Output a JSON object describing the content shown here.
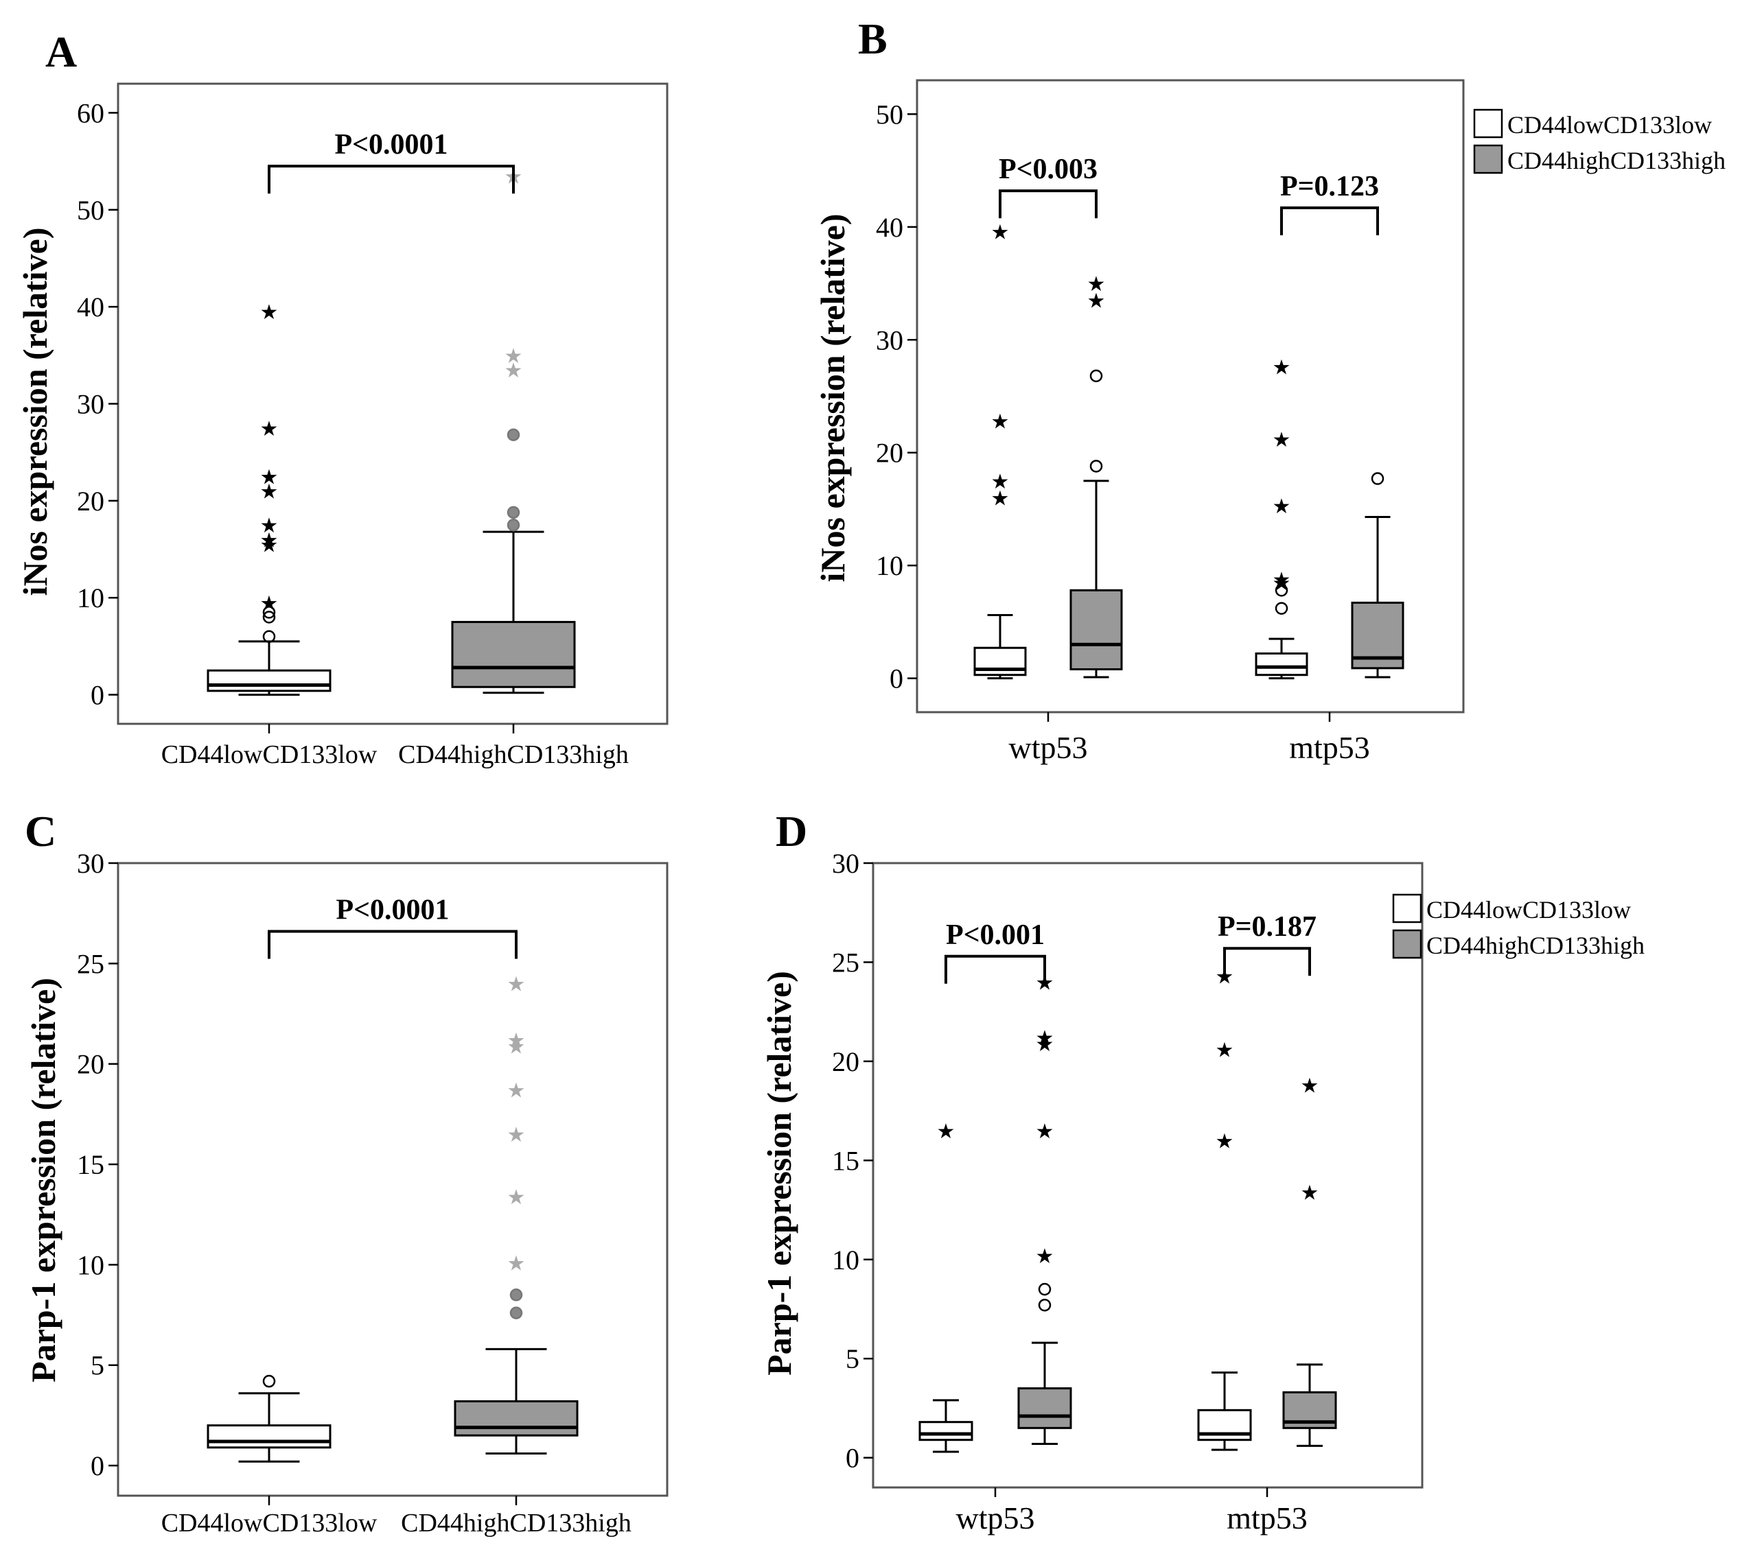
{
  "figure": {
    "panels": [
      "A",
      "B",
      "C",
      "D"
    ]
  },
  "colors": {
    "low_fill": "#ffffff",
    "high_fill": "#999999",
    "axis": "#000000",
    "frame": "#555555",
    "faded": "#aaaaaa"
  },
  "chart_data": [
    {
      "panel": "A",
      "type": "box",
      "ylabel": "iNos expression (relative)",
      "ylim": [
        -3,
        63
      ],
      "yticks": [
        0,
        10,
        20,
        30,
        40,
        50,
        60
      ],
      "categories": [
        "CD44lowCD133low",
        "CD44highCD133high"
      ],
      "boxes": [
        {
          "category": "CD44lowCD133low",
          "color": "#ffffff",
          "min": 0,
          "q1": 0.4,
          "median": 1.0,
          "q3": 2.5,
          "max": 5.5,
          "outliers_circle": [
            6.0,
            8.0,
            8.5
          ],
          "outliers_star": [
            9.5,
            15.5,
            16.0,
            17.5,
            21.0,
            22.5,
            27.5,
            39.5
          ],
          "faded": false
        },
        {
          "category": "CD44highCD133high",
          "color": "#999999",
          "min": 0.2,
          "q1": 0.8,
          "median": 2.8,
          "q3": 7.5,
          "max": 16.8,
          "outliers_circle": [
            17.5,
            18.8,
            26.8
          ],
          "outliers_star": [
            33.5,
            35.0,
            53.5
          ],
          "faded": true
        }
      ],
      "comparisons": [
        {
          "label": "P<0.0001",
          "between": [
            0,
            1
          ],
          "y": 54.5
        }
      ]
    },
    {
      "panel": "B",
      "type": "box",
      "ylabel": "iNos expression (relative)",
      "ylim": [
        -3,
        53
      ],
      "yticks": [
        0,
        10,
        20,
        30,
        40,
        50
      ],
      "groups": [
        "wtp53",
        "mtp53"
      ],
      "legend": [
        "CD44lowCD133low",
        "CD44highCD133high"
      ],
      "boxes": [
        {
          "group": "wtp53",
          "series": "CD44lowCD133low",
          "color": "#ffffff",
          "min": 0,
          "q1": 0.3,
          "median": 0.8,
          "q3": 2.7,
          "max": 5.6,
          "outliers_circle": [],
          "outliers_star": [
            16.0,
            17.5,
            22.8,
            39.6
          ],
          "faded": false
        },
        {
          "group": "wtp53",
          "series": "CD44highCD133high",
          "color": "#999999",
          "min": 0.1,
          "q1": 0.8,
          "median": 3.0,
          "q3": 7.8,
          "max": 17.5,
          "outliers_circle": [
            18.8,
            26.8
          ],
          "outliers_star": [
            33.5,
            35.0
          ],
          "faded": false
        },
        {
          "group": "mtp53",
          "series": "CD44lowCD133low",
          "color": "#ffffff",
          "min": 0,
          "q1": 0.3,
          "median": 1.0,
          "q3": 2.2,
          "max": 3.5,
          "outliers_circle": [
            6.2,
            7.8
          ],
          "outliers_star": [
            8.5,
            8.8,
            15.3,
            21.2,
            27.6
          ],
          "faded": false
        },
        {
          "group": "mtp53",
          "series": "CD44highCD133high",
          "color": "#999999",
          "min": 0.1,
          "q1": 0.9,
          "median": 1.8,
          "q3": 6.7,
          "max": 14.3,
          "outliers_circle": [
            17.7
          ],
          "outliers_star": [],
          "faded": false
        }
      ],
      "comparisons": [
        {
          "label": "P<0.003",
          "group": "wtp53",
          "y": 43.2
        },
        {
          "label": "P=0.123",
          "group": "mtp53",
          "y": 41.7
        }
      ]
    },
    {
      "panel": "C",
      "type": "box",
      "ylabel": "Parp-1 expression (relative)",
      "ylim": [
        -1.5,
        30
      ],
      "yticks": [
        0,
        5,
        10,
        15,
        20,
        25,
        30
      ],
      "categories": [
        "CD44lowCD133low",
        "CD44highCD133high"
      ],
      "boxes": [
        {
          "category": "CD44lowCD133low",
          "color": "#ffffff",
          "min": 0.2,
          "q1": 0.9,
          "median": 1.2,
          "q3": 2.0,
          "max": 3.6,
          "outliers_circle": [
            4.2
          ],
          "outliers_star": [],
          "faded": false
        },
        {
          "category": "CD44highCD133high",
          "color": "#999999",
          "min": 0.6,
          "q1": 1.5,
          "median": 1.9,
          "q3": 3.2,
          "max": 5.8,
          "outliers_circle": [
            7.6,
            8.5
          ],
          "outliers_star": [
            10.1,
            13.4,
            16.5,
            18.7,
            20.9,
            21.2,
            24.0
          ],
          "faded": true
        }
      ],
      "comparisons": [
        {
          "label": "P<0.0001",
          "between": [
            0,
            1
          ],
          "y": 26.6
        }
      ]
    },
    {
      "panel": "D",
      "type": "box",
      "ylabel": "Parp-1 expression (relative)",
      "ylim": [
        -1.5,
        30
      ],
      "yticks": [
        0,
        5,
        10,
        15,
        20,
        25,
        30
      ],
      "groups": [
        "wtp53",
        "mtp53"
      ],
      "legend": [
        "CD44lowCD133low",
        "CD44highCD133high"
      ],
      "boxes": [
        {
          "group": "wtp53",
          "series": "CD44lowCD133low",
          "color": "#ffffff",
          "min": 0.3,
          "q1": 0.9,
          "median": 1.2,
          "q3": 1.8,
          "max": 2.9,
          "outliers_circle": [],
          "outliers_star": [
            16.5
          ],
          "faded": false
        },
        {
          "group": "wtp53",
          "series": "CD44highCD133high",
          "color": "#999999",
          "min": 0.7,
          "q1": 1.5,
          "median": 2.1,
          "q3": 3.5,
          "max": 5.8,
          "outliers_circle": [
            7.7,
            8.5
          ],
          "outliers_star": [
            10.2,
            16.5,
            20.9,
            21.2,
            24.0
          ],
          "faded": false
        },
        {
          "group": "mtp53",
          "series": "CD44lowCD133low",
          "color": "#ffffff",
          "min": 0.4,
          "q1": 0.9,
          "median": 1.2,
          "q3": 2.4,
          "max": 4.3,
          "outliers_circle": [],
          "outliers_star": [
            16.0,
            20.6,
            24.3
          ],
          "faded": false
        },
        {
          "group": "mtp53",
          "series": "CD44highCD133high",
          "color": "#999999",
          "min": 0.6,
          "q1": 1.5,
          "median": 1.8,
          "q3": 3.3,
          "max": 4.7,
          "outliers_circle": [],
          "outliers_star": [
            13.4,
            18.8
          ],
          "faded": false
        }
      ],
      "comparisons": [
        {
          "label": "P<0.001",
          "group": "wtp53",
          "y": 25.3
        },
        {
          "label": "P=0.187",
          "group": "mtp53",
          "y": 25.7
        }
      ]
    }
  ]
}
